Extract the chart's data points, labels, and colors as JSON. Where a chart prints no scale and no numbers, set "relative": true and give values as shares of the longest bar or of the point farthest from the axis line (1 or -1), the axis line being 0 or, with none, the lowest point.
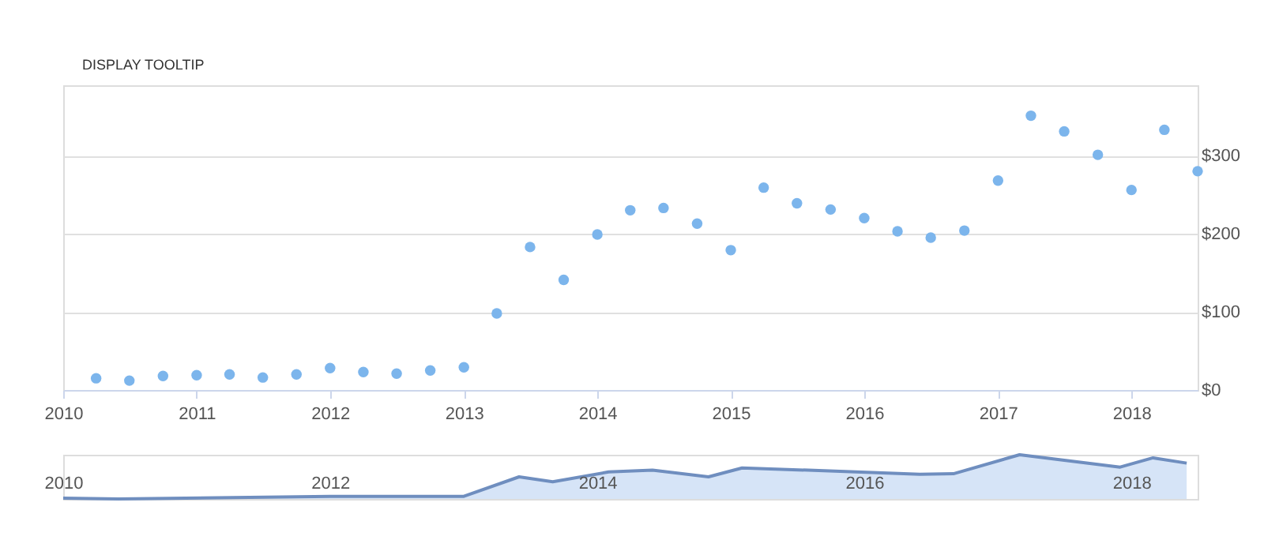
{
  "chart_data": [
    {
      "type": "scatter",
      "annotations": [
        "DISPLAY TOOLTIP"
      ],
      "x": [
        "2010-04",
        "2010-07",
        "2010-10",
        "2011-01",
        "2011-04",
        "2011-07",
        "2011-10",
        "2012-01",
        "2012-04",
        "2012-07",
        "2012-10",
        "2013-01",
        "2013-04",
        "2013-07",
        "2013-10",
        "2014-01",
        "2014-04",
        "2014-07",
        "2014-10",
        "2015-01",
        "2015-04",
        "2015-07",
        "2015-10",
        "2016-01",
        "2016-04",
        "2016-07",
        "2016-10",
        "2017-01",
        "2017-04",
        "2017-07",
        "2017-10",
        "2018-01",
        "2018-04",
        "2018-07"
      ],
      "series": [
        {
          "color": "#7cb5ec",
          "values": [
            15,
            12,
            18,
            19,
            20,
            16,
            20,
            28,
            23,
            21,
            25,
            29,
            98,
            183,
            141,
            199,
            230,
            233,
            213,
            179,
            259,
            239,
            231,
            220,
            203,
            195,
            204,
            268,
            351,
            331,
            301,
            256,
            333,
            280
          ]
        }
      ],
      "xlim": [
        "2010-01",
        "2018-07"
      ],
      "xticks": [
        "2010",
        "2011",
        "2012",
        "2013",
        "2014",
        "2015",
        "2016",
        "2017",
        "2018"
      ],
      "ylim": [
        0,
        390
      ],
      "yticks": [
        {
          "value": 0,
          "label": "$0"
        },
        {
          "value": 100,
          "label": "$100"
        },
        {
          "value": 200,
          "label": "$200"
        },
        {
          "value": 300,
          "label": "$300"
        }
      ],
      "grid": "y",
      "marker": "circle"
    },
    {
      "type": "area",
      "relative": true,
      "tick_labels": "x",
      "x": [
        "2010-01",
        "2010-06",
        "2012-01",
        "2013-01",
        "2013-06",
        "2013-09",
        "2014-02",
        "2014-06",
        "2014-11",
        "2015-02",
        "2015-08",
        "2016-06",
        "2016-09",
        "2017-03",
        "2017-12",
        "2018-03",
        "2018-06"
      ],
      "series": [
        {
          "color": "#6f8ebf",
          "values": [
            0.02,
            0,
            0.06,
            0.06,
            0.5,
            0.39,
            0.61,
            0.65,
            0.5,
            0.7,
            0.65,
            0.56,
            0.57,
            1,
            0.72,
            0.93,
            0.81
          ]
        }
      ],
      "xlim": [
        "2010-01",
        "2018-07"
      ],
      "xticks": [
        "2010",
        "2012",
        "2014",
        "2016",
        "2018"
      ]
    }
  ]
}
